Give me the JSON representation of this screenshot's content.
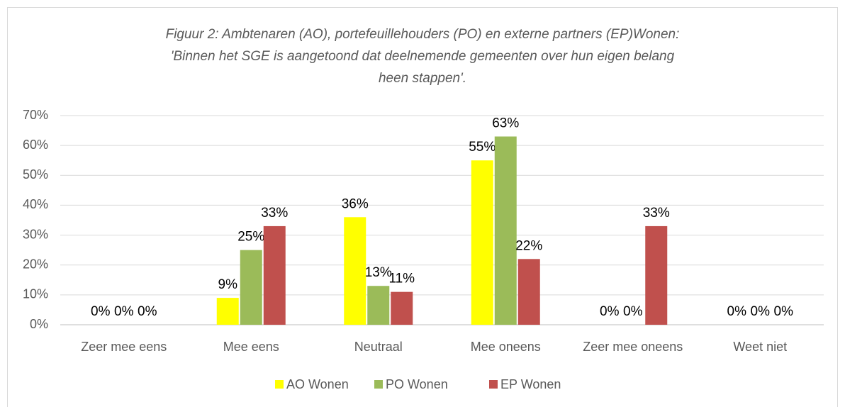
{
  "chart_data": {
    "type": "bar",
    "title": [
      "Figuur 2: Ambtenaren (AO), portefeuillehouders (PO) en externe partners (EP)Wonen:",
      "'Binnen het SGE is aangetoond dat deelnemende gemeenten over hun eigen belang",
      "heen stappen'."
    ],
    "categories": [
      "Zeer mee eens",
      "Mee eens",
      "Neutraal",
      "Mee oneens",
      "Zeer mee oneens",
      "Weet niet"
    ],
    "series": [
      {
        "name": "AO Wonen",
        "color": "#ffff00",
        "values": [
          0,
          9,
          36,
          55,
          0,
          0
        ],
        "value_labels": [
          "0%",
          "9%",
          "36%",
          "55%",
          "0%",
          "0%"
        ]
      },
      {
        "name": "PO Wonen",
        "color": "#9bbb59",
        "values": [
          0,
          25,
          13,
          63,
          0,
          0
        ],
        "value_labels": [
          "0%",
          "25%",
          "13%",
          "63%",
          "0%",
          "0%"
        ]
      },
      {
        "name": "EP Wonen",
        "color": "#c0504d",
        "values": [
          0,
          33,
          11,
          22,
          33,
          0
        ],
        "value_labels": [
          "0%",
          "33%",
          "11%",
          "22%",
          "33%",
          "0%"
        ]
      }
    ],
    "ylim": [
      0,
      70
    ],
    "yticks": [
      {
        "value": 0,
        "label": "0%"
      },
      {
        "value": 10,
        "label": "10%"
      },
      {
        "value": 20,
        "label": "20%"
      },
      {
        "value": 30,
        "label": "30%"
      },
      {
        "value": 40,
        "label": "40%"
      },
      {
        "value": 50,
        "label": "50%"
      },
      {
        "value": 60,
        "label": "60%"
      },
      {
        "value": 70,
        "label": "70%"
      }
    ],
    "grid": true,
    "legend": "bottom"
  }
}
